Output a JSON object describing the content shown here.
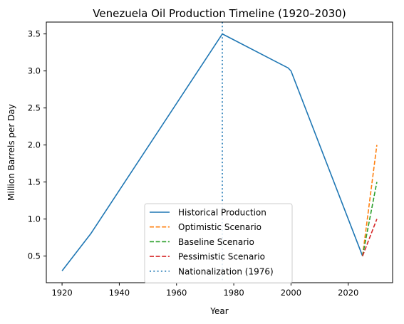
{
  "chart_data": {
    "type": "line",
    "title": "Venezuela Oil Production Timeline (1920–2030)",
    "xlabel": "Year",
    "ylabel": "Million Barrels per Day",
    "xlim": [
      1914.5,
      2035.5
    ],
    "ylim": [
      0.14,
      3.66
    ],
    "xticks": [
      1920,
      1940,
      1960,
      1980,
      2000,
      2020
    ],
    "yticks": [
      0.5,
      1.0,
      1.5,
      2.0,
      2.5,
      3.0,
      3.5
    ],
    "grid": false,
    "legend_position": "lower center",
    "series": [
      {
        "name": "Historical Production",
        "color": "#1f77b4",
        "style": "solid",
        "x": [
          1920,
          1930,
          1976,
          1999,
          2000,
          2025
        ],
        "y": [
          0.3,
          0.8,
          3.5,
          3.04,
          3.0,
          0.5
        ]
      },
      {
        "name": "Optimistic Scenario",
        "color": "#ff7f0e",
        "style": "dashed",
        "x": [
          2025,
          2030
        ],
        "y": [
          0.5,
          2.0
        ]
      },
      {
        "name": "Baseline Scenario",
        "color": "#2ca02c",
        "style": "dashed",
        "x": [
          2025,
          2030
        ],
        "y": [
          0.5,
          1.5
        ]
      },
      {
        "name": "Pessimistic Scenario",
        "color": "#d62728",
        "style": "dashed",
        "x": [
          2025,
          2030
        ],
        "y": [
          0.5,
          1.0
        ]
      }
    ],
    "vlines": [
      {
        "name": "Nationalization (1976)",
        "x": 1976,
        "color": "#1f77b4",
        "style": "dotted"
      }
    ]
  }
}
